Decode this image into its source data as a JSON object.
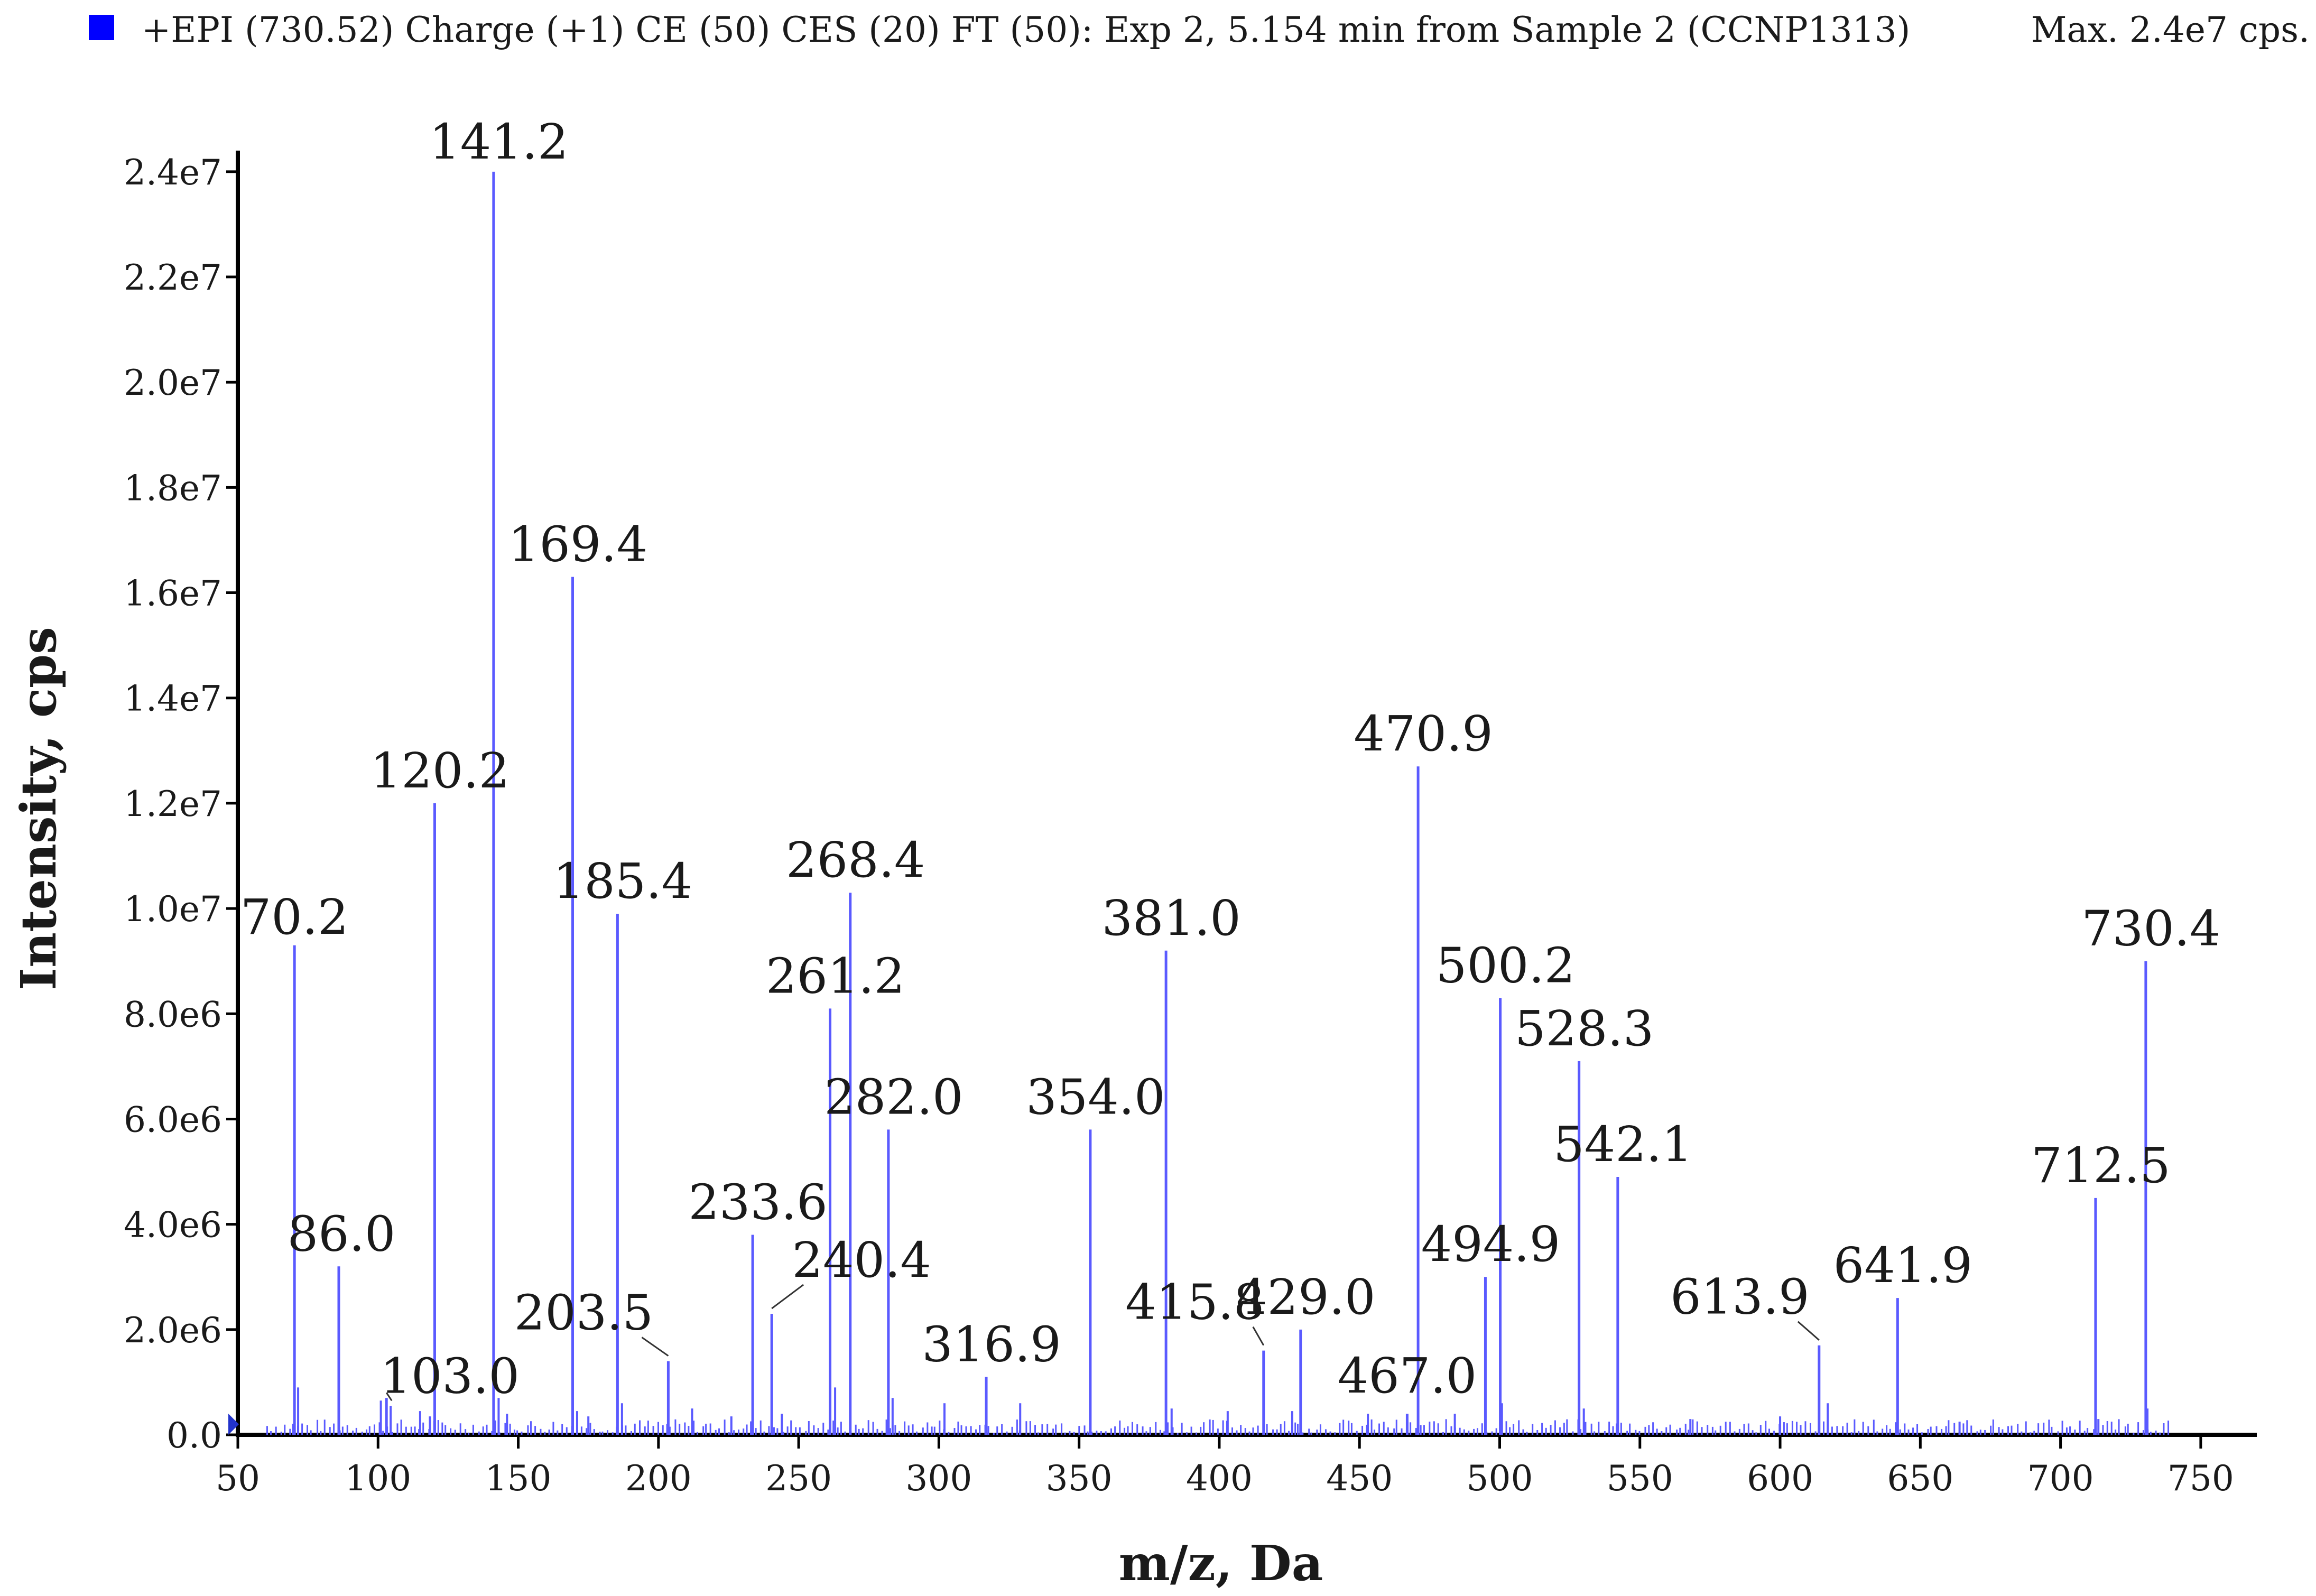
{
  "header": {
    "title": "+EPI (730.52) Charge (+1) CE (50) CES (20) FT (50): Exp 2, 5.154 min from Sample 2 (CCNP1313)",
    "max_label": "Max. 2.4e7 cps.",
    "series_color": "#0000ff"
  },
  "chart_data": {
    "type": "bar",
    "title": "+EPI (730.52) Charge (+1) CE (50) CES (20) FT (50): Exp 2, 5.154 min from Sample 2 (CCNP1313)",
    "xlabel": "m/z, Da",
    "ylabel": "Intensity, cps",
    "xlim": [
      50,
      770
    ],
    "ylim": [
      0,
      24400000
    ],
    "x_ticks": [
      50,
      100,
      150,
      200,
      250,
      300,
      350,
      400,
      450,
      500,
      550,
      600,
      650,
      700,
      750
    ],
    "x_tick_labels": [
      "50",
      "100",
      "150",
      "200",
      "250",
      "300",
      "350",
      "400",
      "450",
      "500",
      "550",
      "600",
      "650",
      "700",
      "750"
    ],
    "y_ticks": [
      0,
      2000000,
      4000000,
      6000000,
      8000000,
      10000000,
      12000000,
      14000000,
      16000000,
      18000000,
      20000000,
      22000000,
      24000000
    ],
    "y_tick_labels": [
      "0.0",
      "2.0e6",
      "4.0e6",
      "6.0e6",
      "8.0e6",
      "1.0e7",
      "1.2e7",
      "1.4e7",
      "1.6e7",
      "1.8e7",
      "2.0e7",
      "2.2e7",
      "2.4e7"
    ],
    "line_color": "#5a5aff",
    "peaks": [
      {
        "mz": 70.2,
        "intensity": 9300000,
        "label": "70.2"
      },
      {
        "mz": 86.0,
        "intensity": 3200000,
        "label": "86.0"
      },
      {
        "mz": 103.0,
        "intensity": 700000,
        "label": "103.0"
      },
      {
        "mz": 120.2,
        "intensity": 12000000,
        "label": "120.2"
      },
      {
        "mz": 141.2,
        "intensity": 24000000,
        "label": "141.2"
      },
      {
        "mz": 169.4,
        "intensity": 16300000,
        "label": "169.4"
      },
      {
        "mz": 185.4,
        "intensity": 9900000,
        "label": "185.4"
      },
      {
        "mz": 203.5,
        "intensity": 1400000,
        "label": "203.5"
      },
      {
        "mz": 233.6,
        "intensity": 3800000,
        "label": "233.6"
      },
      {
        "mz": 240.4,
        "intensity": 2300000,
        "label": "240.4"
      },
      {
        "mz": 261.2,
        "intensity": 8100000,
        "label": "261.2"
      },
      {
        "mz": 268.4,
        "intensity": 10300000,
        "label": "268.4"
      },
      {
        "mz": 282.0,
        "intensity": 5800000,
        "label": "282.0"
      },
      {
        "mz": 316.9,
        "intensity": 1100000,
        "label": "316.9"
      },
      {
        "mz": 354.0,
        "intensity": 5800000,
        "label": "354.0"
      },
      {
        "mz": 381.0,
        "intensity": 9200000,
        "label": "381.0"
      },
      {
        "mz": 415.8,
        "intensity": 1600000,
        "label": "415.8"
      },
      {
        "mz": 429.0,
        "intensity": 2000000,
        "label": "429.0"
      },
      {
        "mz": 467.0,
        "intensity": 400000,
        "label": "467.0"
      },
      {
        "mz": 470.9,
        "intensity": 12700000,
        "label": "470.9"
      },
      {
        "mz": 494.9,
        "intensity": 3000000,
        "label": "494.9"
      },
      {
        "mz": 500.2,
        "intensity": 8300000,
        "label": "500.2"
      },
      {
        "mz": 528.3,
        "intensity": 7100000,
        "label": "528.3"
      },
      {
        "mz": 542.1,
        "intensity": 4900000,
        "label": "542.1"
      },
      {
        "mz": 613.9,
        "intensity": 1700000,
        "label": "613.9"
      },
      {
        "mz": 641.9,
        "intensity": 2600000,
        "label": "641.9"
      },
      {
        "mz": 712.5,
        "intensity": 4500000,
        "label": "712.5"
      },
      {
        "mz": 730.4,
        "intensity": 9000000,
        "label": "730.4"
      }
    ],
    "minor_peaks": [
      {
        "mz": 71.5,
        "intensity": 900000
      },
      {
        "mz": 101.0,
        "intensity": 650000
      },
      {
        "mz": 104.5,
        "intensity": 550000
      },
      {
        "mz": 115.0,
        "intensity": 450000
      },
      {
        "mz": 118.5,
        "intensity": 350000
      },
      {
        "mz": 143.0,
        "intensity": 700000
      },
      {
        "mz": 146.0,
        "intensity": 400000
      },
      {
        "mz": 171.0,
        "intensity": 450000
      },
      {
        "mz": 175.0,
        "intensity": 350000
      },
      {
        "mz": 187.0,
        "intensity": 600000
      },
      {
        "mz": 212.0,
        "intensity": 500000
      },
      {
        "mz": 226.0,
        "intensity": 350000
      },
      {
        "mz": 244.0,
        "intensity": 400000
      },
      {
        "mz": 263.0,
        "intensity": 900000
      },
      {
        "mz": 283.5,
        "intensity": 700000
      },
      {
        "mz": 302.0,
        "intensity": 600000
      },
      {
        "mz": 329.0,
        "intensity": 600000
      },
      {
        "mz": 383.0,
        "intensity": 500000
      },
      {
        "mz": 403.0,
        "intensity": 450000
      },
      {
        "mz": 426.0,
        "intensity": 450000
      },
      {
        "mz": 453.0,
        "intensity": 400000
      },
      {
        "mz": 484.0,
        "intensity": 400000
      },
      {
        "mz": 500.8,
        "intensity": 600000
      },
      {
        "mz": 530.0,
        "intensity": 500000
      },
      {
        "mz": 568.0,
        "intensity": 300000
      },
      {
        "mz": 600.0,
        "intensity": 350000
      },
      {
        "mz": 617.0,
        "intensity": 600000
      },
      {
        "mz": 664.0,
        "intensity": 250000
      },
      {
        "mz": 713.5,
        "intensity": 300000
      },
      {
        "mz": 731.0,
        "intensity": 500000
      }
    ]
  }
}
